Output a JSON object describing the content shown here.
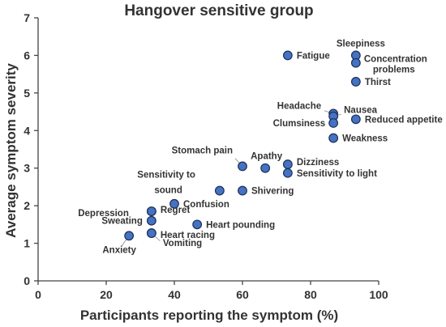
{
  "chart_data": {
    "type": "scatter",
    "title": "Hangover sensitive group",
    "xlabel": "Participants reporting the symptom (%)",
    "ylabel": "Average symptom severity",
    "xlim": [
      0,
      100
    ],
    "ylim": [
      0,
      7
    ],
    "xticks": [
      "0",
      "20",
      "40",
      "60",
      "80",
      "100"
    ],
    "yticks": [
      "0",
      "1",
      "2",
      "3",
      "4",
      "5",
      "6",
      "7"
    ],
    "grid": false,
    "marker_color": "#4472C4",
    "points": [
      {
        "label": "Fatigue",
        "x": 73.3,
        "y": 6.0
      },
      {
        "label": "Sleepiness",
        "x": 93.3,
        "y": 6.0
      },
      {
        "label": "Concentration problems",
        "x": 93.3,
        "y": 5.8
      },
      {
        "label": "Thirst",
        "x": 93.3,
        "y": 5.3
      },
      {
        "label": "Headache",
        "x": 86.7,
        "y": 4.45
      },
      {
        "label": "Nausea",
        "x": 86.7,
        "y": 4.38
      },
      {
        "label": "Clumsiness",
        "x": 86.7,
        "y": 4.2
      },
      {
        "label": "Reduced appetite",
        "x": 93.3,
        "y": 4.3
      },
      {
        "label": "Weakness",
        "x": 86.7,
        "y": 3.8
      },
      {
        "label": "Stomach pain",
        "x": 60.0,
        "y": 3.05
      },
      {
        "label": "Apathy",
        "x": 66.7,
        "y": 3.0
      },
      {
        "label": "Dizziness",
        "x": 73.3,
        "y": 3.1
      },
      {
        "label": "Sensitivity to light",
        "x": 73.3,
        "y": 2.87
      },
      {
        "label": "Sensitivity to sound",
        "x": 53.3,
        "y": 2.4
      },
      {
        "label": "Shivering",
        "x": 60.0,
        "y": 2.4
      },
      {
        "label": "Confusion",
        "x": 40.0,
        "y": 2.05
      },
      {
        "label": "Regret",
        "x": 33.3,
        "y": 1.85
      },
      {
        "label": "Depression",
        "x": 33.3,
        "y": 1.85
      },
      {
        "label": "Sweating",
        "x": 33.3,
        "y": 1.6
      },
      {
        "label": "Heart pounding",
        "x": 46.7,
        "y": 1.5
      },
      {
        "label": "Heart racing",
        "x": 33.3,
        "y": 1.27
      },
      {
        "label": "Vomiting",
        "x": 33.3,
        "y": 1.27
      },
      {
        "label": "Anxiety",
        "x": 26.7,
        "y": 1.2
      }
    ]
  }
}
